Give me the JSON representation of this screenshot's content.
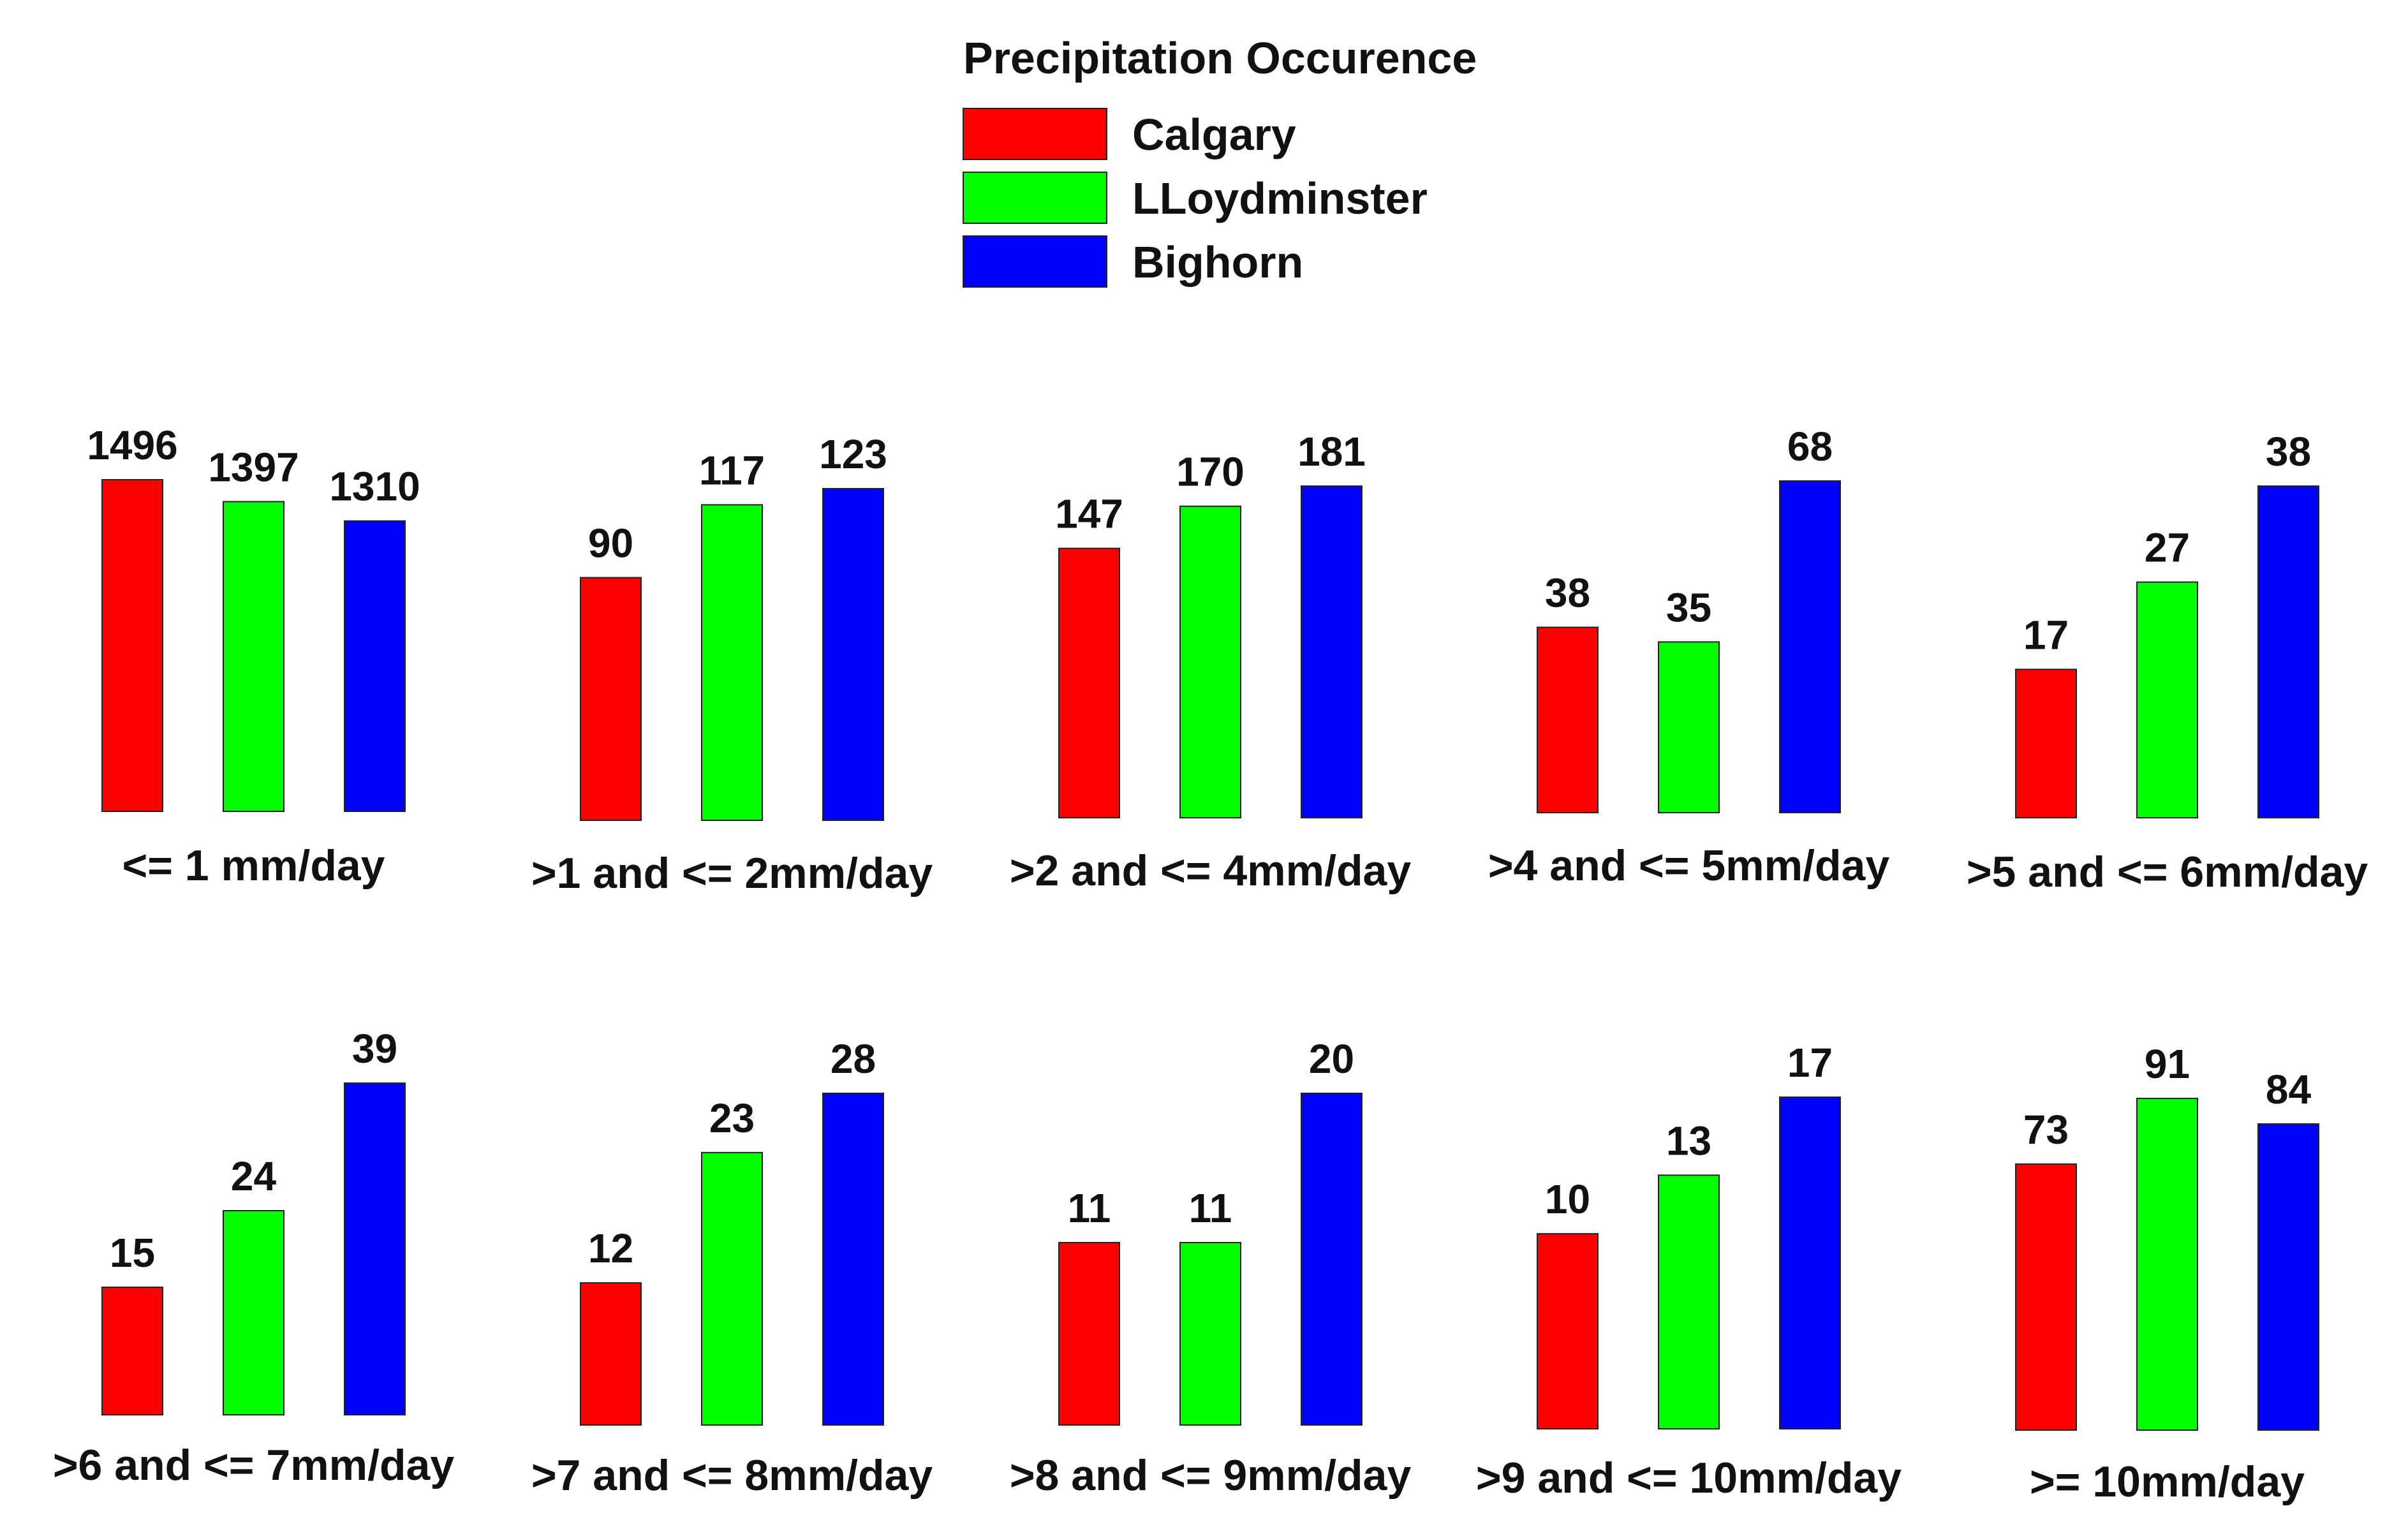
{
  "legend": {
    "title": "Precipitation Occurence",
    "items": [
      {
        "label": "Calgary",
        "color": "#ff0000"
      },
      {
        "label": "LLoydminster",
        "color": "#00ff00"
      },
      {
        "label": "Bighorn",
        "color": "#0000ff"
      }
    ]
  },
  "chart_data": [
    {
      "type": "bar",
      "title": "<= 1 mm/day",
      "categories": [
        "Calgary",
        "LLoydminster",
        "Bighorn"
      ],
      "values": [
        1496,
        1397,
        1310
      ],
      "colors": [
        "#ff0000",
        "#00ff00",
        "#0000ff"
      ]
    },
    {
      "type": "bar",
      "title": ">1 and <= 2mm/day",
      "categories": [
        "Calgary",
        "LLoydminster",
        "Bighorn"
      ],
      "values": [
        90,
        117,
        123
      ],
      "colors": [
        "#ff0000",
        "#00ff00",
        "#0000ff"
      ]
    },
    {
      "type": "bar",
      "title": ">2 and <= 4mm/day",
      "categories": [
        "Calgary",
        "LLoydminster",
        "Bighorn"
      ],
      "values": [
        147,
        170,
        181
      ],
      "colors": [
        "#ff0000",
        "#00ff00",
        "#0000ff"
      ]
    },
    {
      "type": "bar",
      "title": ">4 and <= 5mm/day",
      "categories": [
        "Calgary",
        "LLoydminster",
        "Bighorn"
      ],
      "values": [
        38,
        35,
        68
      ],
      "colors": [
        "#ff0000",
        "#00ff00",
        "#0000ff"
      ]
    },
    {
      "type": "bar",
      "title": ">5 and <= 6mm/day",
      "categories": [
        "Calgary",
        "LLoydminster",
        "Bighorn"
      ],
      "values": [
        17,
        27,
        38
      ],
      "colors": [
        "#ff0000",
        "#00ff00",
        "#0000ff"
      ]
    },
    {
      "type": "bar",
      "title": ">6 and <= 7mm/day",
      "categories": [
        "Calgary",
        "LLoydminster",
        "Bighorn"
      ],
      "values": [
        15,
        24,
        39
      ],
      "colors": [
        "#ff0000",
        "#00ff00",
        "#0000ff"
      ]
    },
    {
      "type": "bar",
      "title": ">7 and <= 8mm/day",
      "categories": [
        "Calgary",
        "LLoydminster",
        "Bighorn"
      ],
      "values": [
        12,
        23,
        28
      ],
      "colors": [
        "#ff0000",
        "#00ff00",
        "#0000ff"
      ]
    },
    {
      "type": "bar",
      "title": ">8 and <= 9mm/day",
      "categories": [
        "Calgary",
        "LLoydminster",
        "Bighorn"
      ],
      "values": [
        11,
        11,
        20
      ],
      "colors": [
        "#ff0000",
        "#00ff00",
        "#0000ff"
      ]
    },
    {
      "type": "bar",
      "title": ">9 and <= 10mm/day",
      "categories": [
        "Calgary",
        "LLoydminster",
        "Bighorn"
      ],
      "values": [
        10,
        13,
        17
      ],
      "colors": [
        "#ff0000",
        "#00ff00",
        "#0000ff"
      ]
    },
    {
      "type": "bar",
      "title": ">= 10mm/day",
      "categories": [
        "Calgary",
        "LLoydminster",
        "Bighorn"
      ],
      "values": [
        73,
        91,
        84
      ],
      "colors": [
        "#ff0000",
        "#00ff00",
        "#0000ff"
      ]
    }
  ]
}
